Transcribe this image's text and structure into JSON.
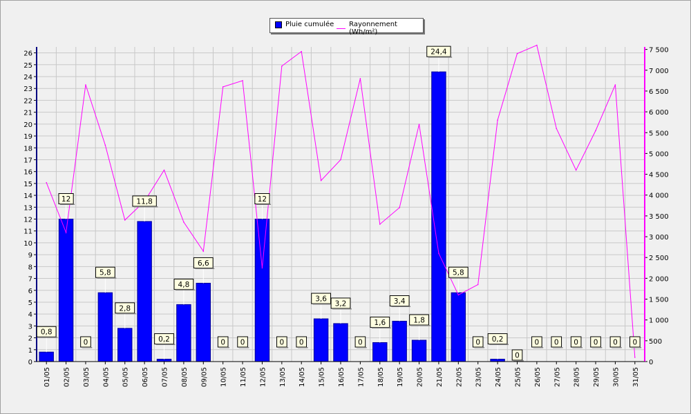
{
  "legend": {
    "bar_label": "Pluie cumulée",
    "line_label": "Rayonnement (Wh/m²)"
  },
  "colors": {
    "bar": "#0000ff",
    "bar_dark": "#00009a",
    "line": "#ff00ff",
    "label_bg": "#ffffe1",
    "grid": "#c8c8c8",
    "axis": "#000080"
  },
  "chart_data": {
    "type": "bar",
    "categories": [
      "01/05",
      "02/05",
      "03/05",
      "04/05",
      "05/05",
      "06/05",
      "07/05",
      "08/05",
      "09/05",
      "10/05",
      "11/05",
      "12/05",
      "13/05",
      "14/05",
      "15/05",
      "16/05",
      "17/05",
      "18/05",
      "19/05",
      "20/05",
      "21/05",
      "22/05",
      "23/05",
      "24/05",
      "25/05",
      "26/05",
      "27/05",
      "28/05",
      "29/05",
      "30/05",
      "31/05"
    ],
    "series": [
      {
        "name": "Pluie cumulée",
        "type": "bar",
        "axis": "left",
        "values": [
          0.8,
          12,
          0,
          5.8,
          2.8,
          11.8,
          0.2,
          4.8,
          6.6,
          0,
          0,
          12,
          0,
          0,
          3.6,
          3.2,
          0,
          1.6,
          3.4,
          1.8,
          24.4,
          5.8,
          0,
          0.2,
          0,
          0,
          0,
          0,
          0,
          0,
          0
        ],
        "labels": [
          "0,8",
          "12",
          "0",
          "5,8",
          "2,8",
          "11,8",
          "0,2",
          "4,8",
          "6,6",
          "0",
          "0",
          "12",
          "0",
          "0",
          "3,6",
          "3,2",
          "0",
          "1,6",
          "3,4",
          "1,8",
          "24,4",
          "5,8",
          "0",
          "0,2",
          "0",
          "0",
          "0",
          "0",
          "0",
          "0",
          "0"
        ]
      },
      {
        "name": "Rayonnement (Wh/m²)",
        "type": "line",
        "axis": "right",
        "values": [
          4300,
          3100,
          6650,
          5200,
          3400,
          3850,
          4600,
          3350,
          2650,
          6600,
          6750,
          2250,
          7100,
          7450,
          4350,
          4850,
          6800,
          3300,
          3700,
          5700,
          2600,
          1600,
          1850,
          5800,
          7400,
          7600,
          5600,
          4600,
          5550,
          6650,
          100
        ]
      }
    ],
    "y_left": {
      "min": 0,
      "max": 26.5,
      "ticks": [
        0,
        1,
        2,
        3,
        4,
        5,
        6,
        7,
        8,
        9,
        10,
        11,
        12,
        13,
        14,
        15,
        16,
        17,
        18,
        19,
        20,
        21,
        22,
        23,
        24,
        25,
        26
      ]
    },
    "y_right": {
      "min": 0,
      "max": 7560,
      "ticks": [
        0,
        500,
        1000,
        1500,
        2000,
        2500,
        3000,
        3500,
        4000,
        4500,
        5000,
        5500,
        6000,
        6500,
        7000,
        7500
      ],
      "tick_labels": [
        "0",
        "500",
        "1 000",
        "1 500",
        "2 000",
        "2 500",
        "3 000",
        "3 500",
        "4 000",
        "4 500",
        "5 000",
        "5 500",
        "6 000",
        "6 500",
        "7 000",
        "7 500"
      ]
    },
    "grid": true,
    "legend_position": "top-center"
  }
}
